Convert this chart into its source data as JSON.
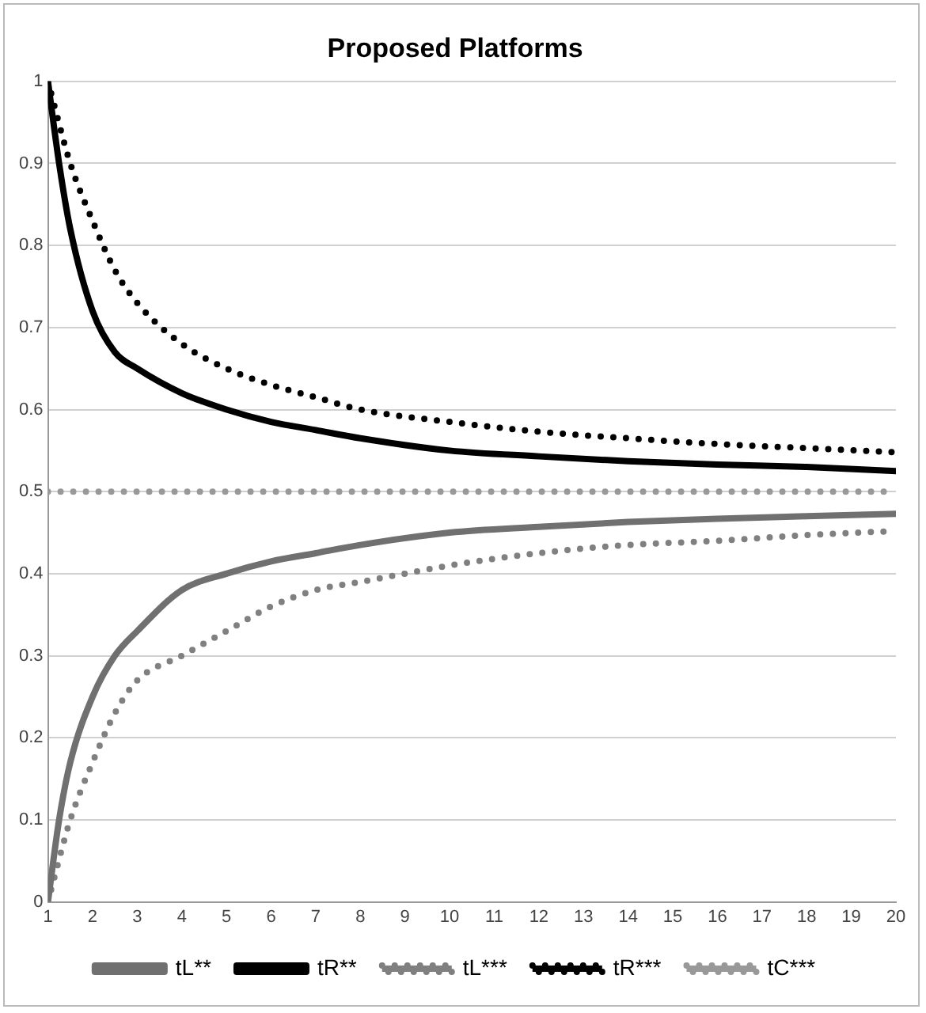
{
  "chart_data": {
    "type": "line",
    "title": "Proposed Platforms",
    "xlim": [
      1,
      20
    ],
    "xticks": [
      1,
      2,
      3,
      4,
      5,
      6,
      7,
      8,
      9,
      10,
      11,
      12,
      13,
      14,
      15,
      16,
      17,
      18,
      19,
      20
    ],
    "ylim": [
      0,
      1
    ],
    "yticks": [
      0,
      0.1,
      0.2,
      0.3,
      0.4,
      0.5,
      0.6,
      0.7,
      0.8,
      0.9,
      1
    ],
    "grid": "y",
    "legend": "bottom",
    "marker": "none",
    "series": [
      {
        "name": "tL**",
        "color": "#707070",
        "line_style": "solid",
        "x": [
          1,
          1.25,
          1.5,
          2,
          2.5,
          3,
          4,
          5,
          6,
          7,
          8,
          10,
          12,
          14,
          16,
          18,
          20
        ],
        "values": [
          0,
          0.1,
          0.17,
          0.25,
          0.3,
          0.33,
          0.38,
          0.4,
          0.415,
          0.425,
          0.435,
          0.45,
          0.457,
          0.463,
          0.467,
          0.47,
          0.473
        ]
      },
      {
        "name": "tR**",
        "color": "#000000",
        "line_style": "solid",
        "x": [
          1,
          1.25,
          1.5,
          2,
          2.5,
          3,
          4,
          5,
          6,
          7,
          8,
          10,
          12,
          14,
          16,
          18,
          20
        ],
        "values": [
          1,
          0.9,
          0.82,
          0.72,
          0.67,
          0.65,
          0.62,
          0.6,
          0.585,
          0.575,
          0.565,
          0.55,
          0.543,
          0.537,
          0.533,
          0.53,
          0.525
        ]
      },
      {
        "name": "tL***",
        "color": "#808080",
        "line_style": "dotted",
        "x": [
          1,
          1.5,
          2,
          2.5,
          3,
          4,
          5,
          6,
          7,
          8,
          9,
          10,
          12,
          14,
          16,
          18,
          20
        ],
        "values": [
          0,
          0.1,
          0.17,
          0.23,
          0.27,
          0.3,
          0.33,
          0.36,
          0.38,
          0.39,
          0.4,
          0.41,
          0.425,
          0.435,
          0.44,
          0.447,
          0.452
        ]
      },
      {
        "name": "tR***",
        "color": "#000000",
        "line_style": "dotted",
        "x": [
          1,
          1.5,
          2,
          2.5,
          3,
          4,
          5,
          6,
          7,
          8,
          10,
          12,
          14,
          16,
          18,
          20
        ],
        "values": [
          1,
          0.9,
          0.83,
          0.77,
          0.73,
          0.68,
          0.65,
          0.63,
          0.615,
          0.6,
          0.585,
          0.573,
          0.565,
          0.558,
          0.553,
          0.548
        ]
      },
      {
        "name": "tC***",
        "color": "#999999",
        "line_style": "dotted",
        "x": [
          1,
          20
        ],
        "values": [
          0.5,
          0.5
        ]
      }
    ]
  }
}
